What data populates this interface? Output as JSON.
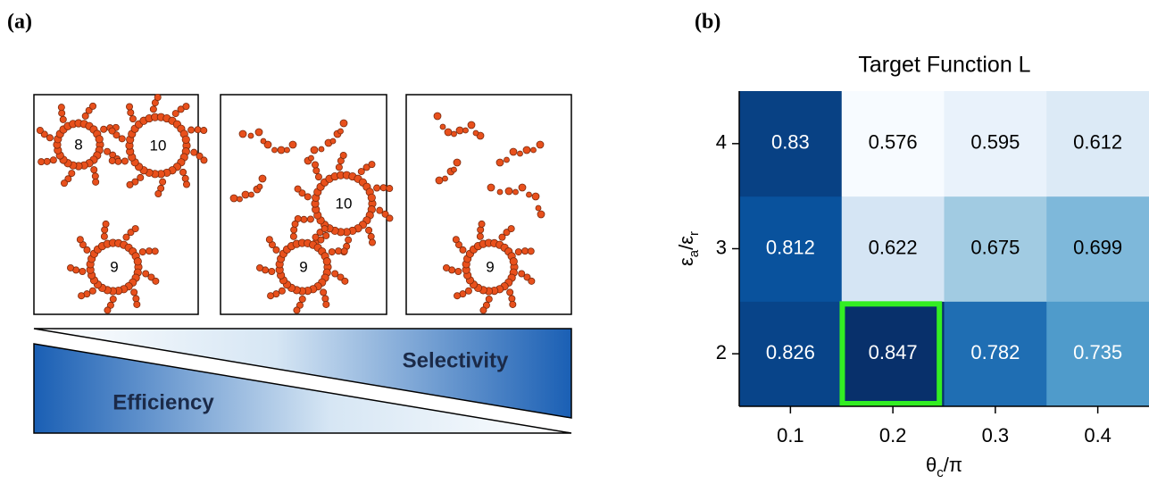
{
  "panel_a": {
    "label": "(a)",
    "boxes": [
      {
        "rings": [
          "8",
          "10",
          "9"
        ]
      },
      {
        "rings": [
          "10",
          "9"
        ]
      },
      {
        "rings": [
          "9"
        ]
      }
    ],
    "selectivity": "Selectivity",
    "efficiency": "Efficiency"
  },
  "panel_b": {
    "label": "(b)"
  },
  "chart_data": {
    "type": "heatmap",
    "title": "Target Function L",
    "x": [
      0.1,
      0.2,
      0.3,
      0.4
    ],
    "y": [
      2,
      3,
      4
    ],
    "values": [
      [
        0.826,
        0.847,
        0.782,
        0.735
      ],
      [
        0.812,
        0.622,
        0.675,
        0.699
      ],
      [
        0.83,
        0.576,
        0.595,
        0.612
      ]
    ],
    "xlabel": [
      {
        "text": "θ"
      },
      {
        "text": "c",
        "sub": true
      },
      {
        "text": "/π"
      }
    ],
    "ylabel": [
      {
        "text": "ε"
      },
      {
        "text": "a",
        "sub": true
      },
      {
        "text": "/ε"
      },
      {
        "text": "r",
        "sub": true
      }
    ],
    "colormap": "Blues",
    "highlight": {
      "x": 0.2,
      "y": 2,
      "color": "#33ee22"
    }
  }
}
